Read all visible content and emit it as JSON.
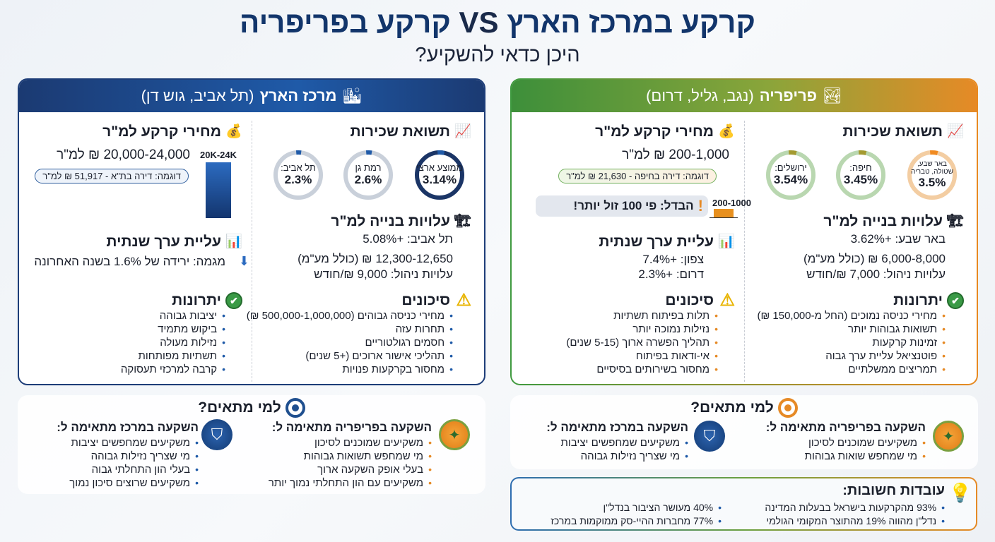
{
  "title": {
    "part1": "קרקע במרכז הארץ",
    "vs": "VS",
    "part2": "קרקע בפריפריה",
    "subtitle": "היכן כדאי להשקיע?"
  },
  "colors": {
    "center": "#1d3d78",
    "periphery_green": "#3f9a3f",
    "periphery_orange": "#e88a22"
  },
  "center": {
    "header_bold": "מרכז הארץ",
    "header_rest": "(תל אביב, גוש דן)",
    "header_icon": "city-buildings-icon",
    "rental": {
      "title": "תשואת שכירות",
      "icon": "bar-chart-up-icon",
      "gauges": [
        {
          "label": "ממוצע ארצי",
          "value": "3.14%",
          "pct": 3.14
        },
        {
          "label": "רמת גן",
          "value": "2.6%",
          "pct": 2.6
        },
        {
          "label": "תל אביב:",
          "value": "2.3%",
          "pct": 2.3
        }
      ]
    },
    "construction": {
      "title": "עלויות בנייה למ\"ר",
      "icon": "crane-icon",
      "lines": [
        "תל אביב: +5.08%",
        "12,300-12,650 ₪ (כולל מע\"מ)",
        "עלויות ניהול: 9,000 ₪/חודש"
      ]
    },
    "risks": {
      "title": "סיכונים",
      "icon": "warning-icon",
      "items": [
        "מחירי כניסה גבוהים (500,000-1,000,000 ₪)",
        "תחרות עזה",
        "חסמים רגולטוריים",
        "תהליכי אישור ארוכים (+5 שנים)",
        "מחסור בקרקעות פנויות"
      ]
    },
    "land": {
      "title": "מחירי קרקע למ\"ר",
      "icon": "money-bag-icon",
      "price": "20,000-24,000 ₪ למ\"ר",
      "example": "דוגמה: דירה בת\"א - 51,917 ₪ למ\"ר",
      "bar_label": "20K-24K"
    },
    "appreciation": {
      "title": "עליית ערך שנתית",
      "icon": "growth-chart-icon",
      "lines": [
        "מגמה: ירידה של 1.6% בשנה האחרונה"
      ]
    },
    "advantages": {
      "title": "יתרונות",
      "icon": "check-circle-icon",
      "items": [
        "יציבות גבוהה",
        "ביקוש מתמיד",
        "נזילות מעולה",
        "תשתיות מפותחות",
        "קרבה למרכזי תעסוקה"
      ]
    }
  },
  "periphery": {
    "header_bold": "פריפריה",
    "header_rest": "(נגב, גליל, דרום)",
    "header_icon": "landscape-sun-icon",
    "rental": {
      "title": "תשואת שכירות",
      "icon": "bar-chart-up-icon",
      "gauges": [
        {
          "label": "באר שבע, שטולה, טבריה",
          "value": "3.5%",
          "pct": 3.5
        },
        {
          "label": "חיפה:",
          "value": "3.45%",
          "pct": 3.45
        },
        {
          "label": "ירושלים:",
          "value": "3.54%",
          "pct": 3.54
        }
      ]
    },
    "construction": {
      "title": "עלויות בנייה למ\"ר",
      "icon": "crane-icon",
      "lines": [
        "באר שבע: +3.62%",
        "6,000-8,000 ₪ (כולל מע\"מ)",
        "עלויות ניהול: 7,000 ₪/חודש"
      ]
    },
    "advantages": {
      "title": "יתרונות",
      "icon": "check-circle-icon",
      "items": [
        "מחירי כניסה נמוכים (החל מ-150,000 ₪)",
        "תשואות גבוהות יותר",
        "זמינות קרקעות",
        "פוטנציאל עליית ערך גבוה",
        "תמריצים ממשלתיים"
      ]
    },
    "land": {
      "title": "מחירי קרקע למ\"ר",
      "icon": "money-bag-icon",
      "price": "200-1,000 ₪ למ\"ר",
      "example": "דוגמה: דירה בחיפה - 21,630 ₪ למ\"ר",
      "bar_label": "200-1000",
      "difference": "הבדל: פי 100 זול יותר!"
    },
    "appreciation": {
      "title": "עליית ערך שנתית",
      "icon": "growth-chart-icon",
      "lines": [
        "צפון: +7.4%",
        "דרום: +2.3%"
      ]
    },
    "risks": {
      "title": "סיכונים",
      "icon": "warning-icon",
      "items": [
        "תלות בפיתוח תשתיות",
        "נזילות נמוכה יותר",
        "תהליך הפשרה ארוך (5-15 שנים)",
        "אי-ודאות בפיתוח",
        "מחסור בשירותים בסיסיים"
      ]
    }
  },
  "fit_left": {
    "title": "למי מתאים?",
    "periphery_title": "השקעה בפריפריה מתאימה ל:",
    "periphery_items": [
      "משקיעים שמוכנים לסיכון",
      "מי שמחפש תשואות גבוהות",
      "בעלי אופק השקעה ארוך",
      "משקיעים עם הון התחלתי נמוך יותר"
    ],
    "center_title": "השקעה במרכז מתאימה ל:",
    "center_items": [
      "משקיעים שמחפשים יציבות",
      "מי שצריך נזילות גבוהה",
      "בעלי הון התחלתי גבוה",
      "משקיעים שרוצים סיכון נמוך"
    ]
  },
  "fit_right": {
    "title": "למי מתאים?",
    "periphery_title": "השקעה בפריפריה מתאימה ל:",
    "periphery_items": [
      "משקיעים שמוכנים לסיכון",
      "מי שמחפש שואות גבוהות"
    ],
    "center_title": "השקעה במרכז מתאימה ל:",
    "center_items": [
      "משקיעים שמחפשים יציבות",
      "מי שצריך נזילות גבוהה"
    ]
  },
  "facts": {
    "title": "עובדות חשובות:",
    "icon": "lightbulb-gear-icon",
    "items": [
      "93% מהקרקעות בישראל בבעלות המדינה",
      "נדל\"ן מהווה 19% מהתוצר המקומי הגולמי",
      "40% מעושר הציבור בנדל\"ן",
      "77% מחברות ההיי-סק ממוקמות במרכז"
    ]
  }
}
